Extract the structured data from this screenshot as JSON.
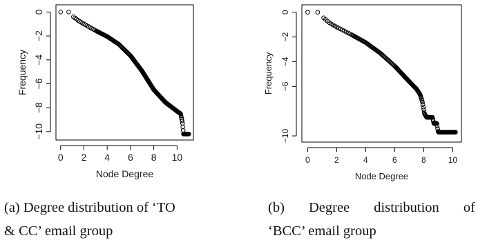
{
  "chart_data": [
    {
      "type": "scatter",
      "panel": "a",
      "xlabel": "Node Degree",
      "ylabel": "Frequency",
      "xlim": [
        -0.4,
        11.4
      ],
      "ylim": [
        -10.7,
        0.6
      ],
      "xticks": [
        0,
        2,
        4,
        6,
        8,
        10
      ],
      "yticks": [
        0,
        -2,
        -4,
        -6,
        -8,
        -10
      ],
      "marker": "open-circle",
      "color": "#000000",
      "grid": false,
      "curve": [
        [
          0.0,
          0.0
        ],
        [
          0.69,
          0.0
        ],
        [
          1.1,
          -0.4
        ],
        [
          1.5,
          -0.7
        ],
        [
          2.0,
          -1.0
        ],
        [
          3.0,
          -1.55
        ],
        [
          4.0,
          -2.05
        ],
        [
          5.0,
          -2.7
        ],
        [
          6.0,
          -3.65
        ],
        [
          7.0,
          -4.95
        ],
        [
          8.0,
          -6.5
        ],
        [
          9.0,
          -7.55
        ],
        [
          10.0,
          -8.3
        ],
        [
          10.3,
          -8.5
        ],
        [
          10.45,
          -9.2
        ],
        [
          10.55,
          -10.2
        ],
        [
          11.0,
          -10.2
        ]
      ]
    },
    {
      "type": "scatter",
      "panel": "b",
      "xlabel": "Node Degree",
      "ylabel": "Frequency",
      "xlim": [
        -0.4,
        10.6
      ],
      "ylim": [
        -10.5,
        0.6
      ],
      "xticks": [
        0,
        2,
        4,
        6,
        8,
        10
      ],
      "yticks": [
        0,
        -2,
        -4,
        -6,
        -10
      ],
      "marker": "open-circle",
      "color": "#000000",
      "grid": false,
      "curve": [
        [
          0.0,
          0.0
        ],
        [
          0.69,
          0.0
        ],
        [
          1.1,
          -0.45
        ],
        [
          1.5,
          -0.85
        ],
        [
          2.0,
          -1.2
        ],
        [
          3.0,
          -1.8
        ],
        [
          4.0,
          -2.45
        ],
        [
          5.0,
          -3.3
        ],
        [
          6.0,
          -4.35
        ],
        [
          7.0,
          -5.6
        ],
        [
          7.5,
          -6.2
        ],
        [
          7.75,
          -6.65
        ],
        [
          7.9,
          -7.2
        ],
        [
          8.05,
          -8.2
        ],
        [
          8.2,
          -8.5
        ],
        [
          8.6,
          -8.5
        ],
        [
          8.7,
          -9.0
        ],
        [
          8.9,
          -9.0
        ],
        [
          9.0,
          -9.7
        ],
        [
          10.2,
          -9.7
        ]
      ]
    }
  ],
  "captions": {
    "a_line1": "(a) Degree distribution of ‘TO",
    "a_line2": "& CC’ email group",
    "b_line1": "(b) Degree distribution of",
    "b_line2": "‘BCC’ email group"
  }
}
